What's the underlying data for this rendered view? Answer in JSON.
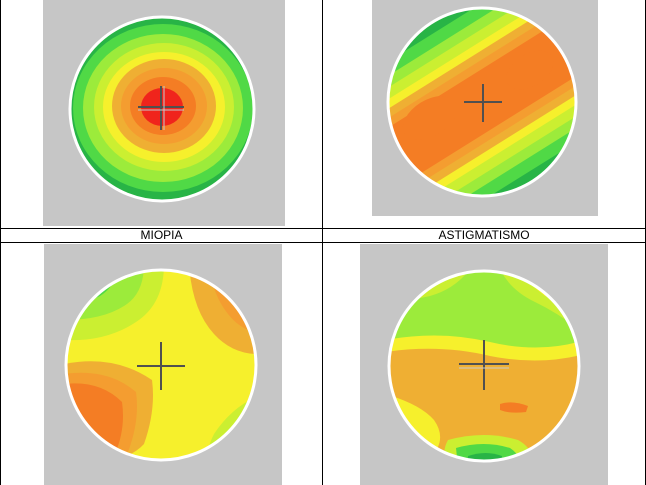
{
  "table": {
    "captions": [
      "MIOPIA",
      "ASTIGMATISMO"
    ],
    "rows": [
      {
        "cells": [
          {
            "map": "miopia-topography",
            "caption_index": 0
          },
          {
            "map": "astigmatismo-topography",
            "caption_index": 1
          }
        ]
      },
      {
        "cells": [
          {
            "map": "irregular-topography-a"
          },
          {
            "map": "irregular-topography-b"
          }
        ]
      }
    ]
  },
  "colors": {
    "frame_bg": "#c6c6c6",
    "rim": "#ffffff",
    "crosshair": "#505050",
    "red": "#f0241c",
    "orange": "#f47d24",
    "orange_light": "#f49d30",
    "amber": "#efaf33",
    "yellow": "#f6f02c",
    "yellow_green": "#cbef31",
    "green_light": "#9ceb3b",
    "green": "#50d946",
    "green_dark": "#28b446",
    "teal": "#169a8e",
    "blue": "#0d34ae"
  }
}
